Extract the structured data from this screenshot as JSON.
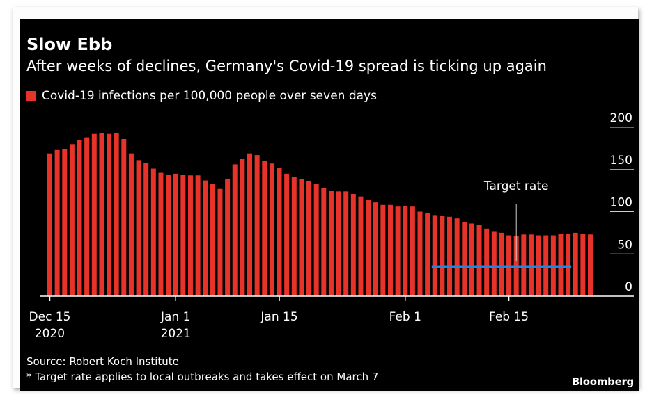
{
  "chart_data": {
    "type": "bar",
    "title": "Slow Ebb",
    "subtitle": "After weeks of declines, Germany's Covid-19 spread is ticking up again",
    "series": [
      {
        "name": "Covid-19 infections per 100,000 people over seven days",
        "color": "#e8332a",
        "values": [
          169,
          173,
          174,
          180,
          185,
          188,
          192,
          193,
          192,
          193,
          186,
          169,
          161,
          158,
          151,
          146,
          144,
          145,
          144,
          143,
          143,
          137,
          133,
          127,
          139,
          156,
          163,
          169,
          167,
          160,
          157,
          152,
          145,
          141,
          139,
          136,
          133,
          128,
          125,
          124,
          124,
          121,
          118,
          114,
          111,
          108,
          108,
          106,
          107,
          106,
          100,
          98,
          96,
          95,
          94,
          92,
          88,
          86,
          84,
          80,
          77,
          75,
          72,
          71,
          73,
          73,
          72,
          72,
          72,
          74,
          74,
          75,
          74,
          73
        ]
      }
    ],
    "x_start_date": "2020-12-15",
    "x_tick_labels": [
      {
        "label": "Dec 15",
        "sub": "2020",
        "date": "2020-12-15"
      },
      {
        "label": "Jan 1",
        "sub": "2021",
        "date": "2021-01-01"
      },
      {
        "label": "Jan 15",
        "sub": "",
        "date": "2021-01-15"
      },
      {
        "label": "Feb 1",
        "sub": "",
        "date": "2021-02-01"
      },
      {
        "label": "Feb 15",
        "sub": "",
        "date": "2021-02-15"
      }
    ],
    "y_ticks": [
      0,
      50,
      100,
      150,
      200
    ],
    "ylim": [
      0,
      200
    ],
    "y_axis_position": "right",
    "gridlines": "right-edge only",
    "annotation": {
      "label": "Target rate",
      "value": 35,
      "color": "#1e88e5",
      "start_date": "2021-02-05",
      "end_date": "2021-02-23"
    }
  },
  "legend_label": "Covid-19 infections per 100,000 people over seven days",
  "source": "Source: Robert Koch Institute",
  "footnote": "* Target rate applies to local outbreaks and takes effect on March 7",
  "brand": "Bloomberg",
  "colors": {
    "background": "#000000",
    "bar": "#e8332a",
    "target_line": "#1e88e5",
    "text": "#ffffff"
  }
}
